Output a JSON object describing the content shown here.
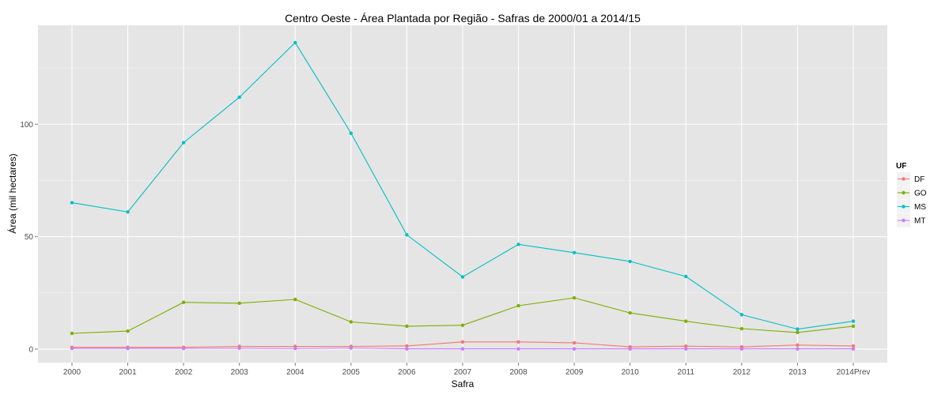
{
  "chart_data": {
    "type": "line",
    "title": "Centro Oeste  - Área Plantada por Região - Safras de 2000/01 a 2014/15",
    "xlabel": "Safra",
    "ylabel": "Área (mil hectares)",
    "categories": [
      "2000",
      "2001",
      "2002",
      "2003",
      "2004",
      "2005",
      "2006",
      "2007",
      "2008",
      "2009",
      "2010",
      "2011",
      "2012",
      "2013",
      "2014Prev"
    ],
    "ylim": [
      -6,
      144
    ],
    "yticks": [
      0,
      50,
      100
    ],
    "grid": true,
    "legend": {
      "title": "UF",
      "position": "right"
    },
    "series": [
      {
        "name": "DF",
        "color": "#F8766D",
        "values": [
          0.8,
          0.8,
          0.8,
          1.2,
          1.2,
          1.2,
          1.4,
          3.2,
          3.2,
          2.8,
          1.0,
          1.3,
          1.0,
          1.8,
          1.4
        ]
      },
      {
        "name": "GO",
        "color": "#7CAE00",
        "values": [
          7.0,
          8.0,
          20.8,
          20.4,
          22.1,
          12.1,
          10.2,
          10.6,
          19.3,
          22.8,
          16.1,
          12.4,
          9.1,
          7.4,
          10.2
        ]
      },
      {
        "name": "MS",
        "color": "#00BFC4",
        "values": [
          65.1,
          61.0,
          91.8,
          112.0,
          136.3,
          96.0,
          50.8,
          32.1,
          46.6,
          42.9,
          39.0,
          32.3,
          15.3,
          8.9,
          12.4
        ]
      },
      {
        "name": "MT",
        "color": "#C77CFF",
        "values": [
          0.3,
          0.3,
          0.3,
          0.4,
          0.3,
          0.5,
          0.1,
          0.1,
          0.1,
          0.1,
          0.1,
          0.1,
          0.1,
          0.1,
          0.1
        ]
      }
    ]
  }
}
